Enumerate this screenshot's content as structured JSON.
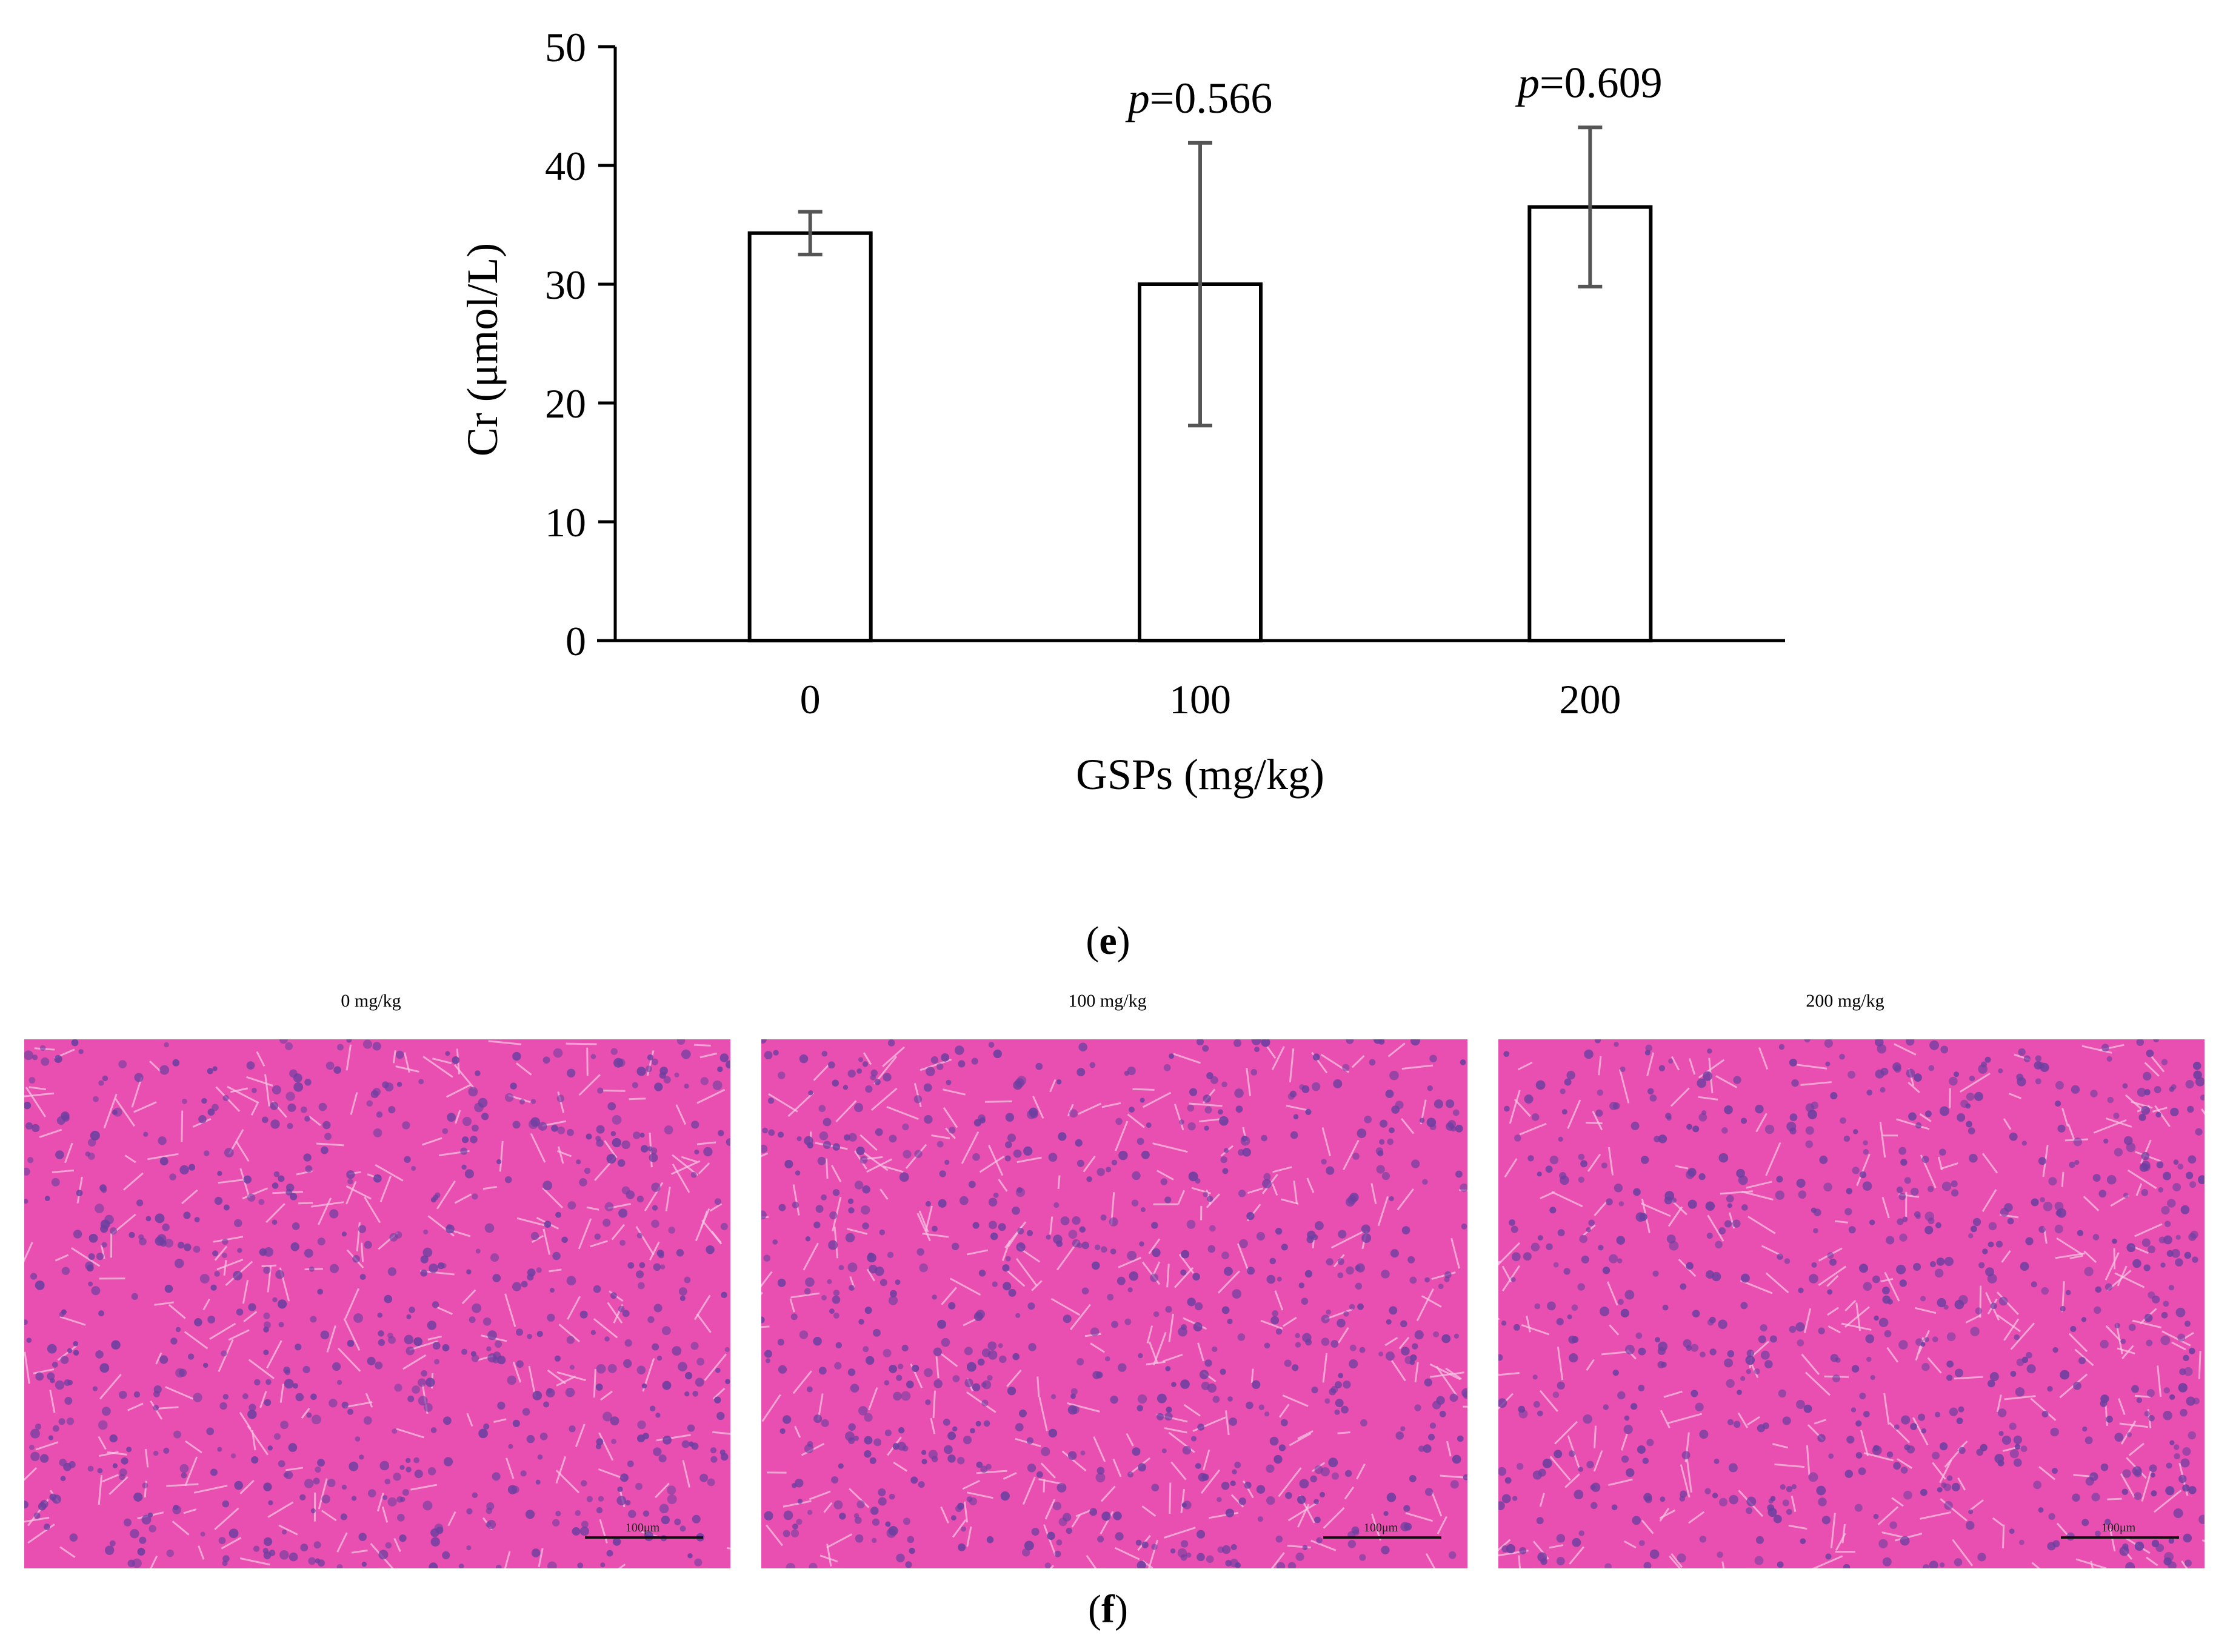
{
  "chart_data": {
    "type": "bar",
    "panel_label": "e",
    "categories": [
      "0",
      "100",
      "200"
    ],
    "values": [
      34.3,
      30.0,
      36.5
    ],
    "errors": [
      1.8,
      11.9,
      6.7
    ],
    "annotations": [
      "",
      "=0.566",
      "=0.609"
    ],
    "annotation_prefix": "p",
    "xlabel": "GSPs (mg/kg)",
    "ylabel": "Cr (μmol/L)",
    "ylim": [
      0,
      50
    ],
    "yticks": [
      "0",
      "10",
      "20",
      "30",
      "40",
      "50"
    ],
    "grid": false,
    "bar_fill": "#ffffff",
    "bar_stroke": "#000000",
    "error_color": "#555555"
  },
  "micrographs": {
    "panel_label": "f",
    "panels": [
      {
        "title": "0 mg/kg",
        "scale_label": "100μm"
      },
      {
        "title": "100 mg/kg",
        "scale_label": "100μm"
      },
      {
        "title": "200 mg/kg",
        "scale_label": "100μm"
      }
    ],
    "colors": {
      "background": "#e84fb0",
      "nuclei": "#6b3fa0",
      "sinusoid": "#f7c8e6"
    }
  }
}
